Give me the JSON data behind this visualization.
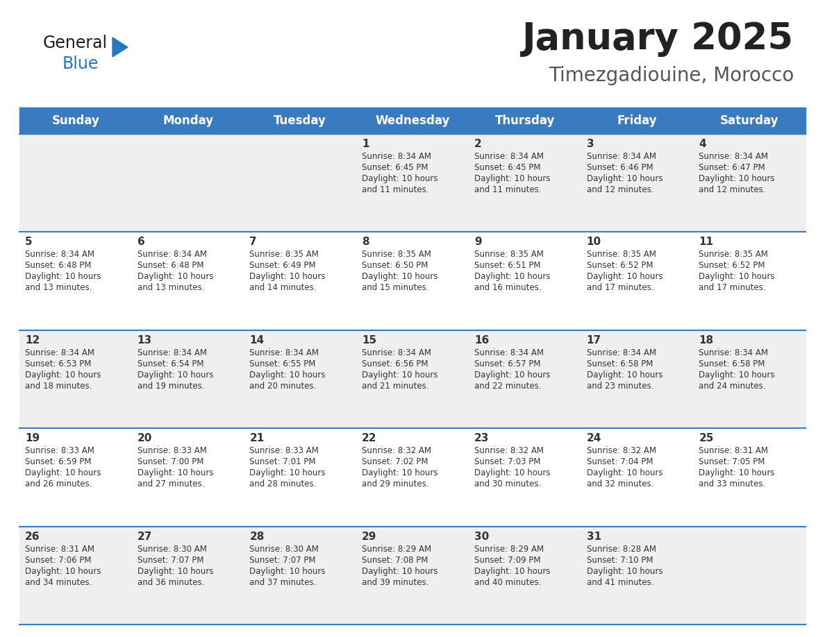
{
  "title": "January 2025",
  "subtitle": "Timezgadiouine, Morocco",
  "days_of_week": [
    "Sunday",
    "Monday",
    "Tuesday",
    "Wednesday",
    "Thursday",
    "Friday",
    "Saturday"
  ],
  "header_bg": "#3a7abf",
  "header_text_color": "#FFFFFF",
  "cell_bg_light": "#EFEFEF",
  "cell_bg_white": "#FFFFFF",
  "row_separator_color": "#3a7abf",
  "text_color": "#333333",
  "title_color": "#222222",
  "subtitle_color": "#555555",
  "logo_general_color": "#1a1a1a",
  "logo_blue_color": "#2278C2",
  "calendar_data": [
    [
      {
        "day": null,
        "sunrise": null,
        "sunset": null,
        "daylight": null
      },
      {
        "day": null,
        "sunrise": null,
        "sunset": null,
        "daylight": null
      },
      {
        "day": null,
        "sunrise": null,
        "sunset": null,
        "daylight": null
      },
      {
        "day": 1,
        "sunrise": "8:34 AM",
        "sunset": "6:45 PM",
        "daylight": "10 hours and 11 minutes."
      },
      {
        "day": 2,
        "sunrise": "8:34 AM",
        "sunset": "6:45 PM",
        "daylight": "10 hours and 11 minutes."
      },
      {
        "day": 3,
        "sunrise": "8:34 AM",
        "sunset": "6:46 PM",
        "daylight": "10 hours and 12 minutes."
      },
      {
        "day": 4,
        "sunrise": "8:34 AM",
        "sunset": "6:47 PM",
        "daylight": "10 hours and 12 minutes."
      }
    ],
    [
      {
        "day": 5,
        "sunrise": "8:34 AM",
        "sunset": "6:48 PM",
        "daylight": "10 hours and 13 minutes."
      },
      {
        "day": 6,
        "sunrise": "8:34 AM",
        "sunset": "6:48 PM",
        "daylight": "10 hours and 13 minutes."
      },
      {
        "day": 7,
        "sunrise": "8:35 AM",
        "sunset": "6:49 PM",
        "daylight": "10 hours and 14 minutes."
      },
      {
        "day": 8,
        "sunrise": "8:35 AM",
        "sunset": "6:50 PM",
        "daylight": "10 hours and 15 minutes."
      },
      {
        "day": 9,
        "sunrise": "8:35 AM",
        "sunset": "6:51 PM",
        "daylight": "10 hours and 16 minutes."
      },
      {
        "day": 10,
        "sunrise": "8:35 AM",
        "sunset": "6:52 PM",
        "daylight": "10 hours and 17 minutes."
      },
      {
        "day": 11,
        "sunrise": "8:35 AM",
        "sunset": "6:52 PM",
        "daylight": "10 hours and 17 minutes."
      }
    ],
    [
      {
        "day": 12,
        "sunrise": "8:34 AM",
        "sunset": "6:53 PM",
        "daylight": "10 hours and 18 minutes."
      },
      {
        "day": 13,
        "sunrise": "8:34 AM",
        "sunset": "6:54 PM",
        "daylight": "10 hours and 19 minutes."
      },
      {
        "day": 14,
        "sunrise": "8:34 AM",
        "sunset": "6:55 PM",
        "daylight": "10 hours and 20 minutes."
      },
      {
        "day": 15,
        "sunrise": "8:34 AM",
        "sunset": "6:56 PM",
        "daylight": "10 hours and 21 minutes."
      },
      {
        "day": 16,
        "sunrise": "8:34 AM",
        "sunset": "6:57 PM",
        "daylight": "10 hours and 22 minutes."
      },
      {
        "day": 17,
        "sunrise": "8:34 AM",
        "sunset": "6:58 PM",
        "daylight": "10 hours and 23 minutes."
      },
      {
        "day": 18,
        "sunrise": "8:34 AM",
        "sunset": "6:58 PM",
        "daylight": "10 hours and 24 minutes."
      }
    ],
    [
      {
        "day": 19,
        "sunrise": "8:33 AM",
        "sunset": "6:59 PM",
        "daylight": "10 hours and 26 minutes."
      },
      {
        "day": 20,
        "sunrise": "8:33 AM",
        "sunset": "7:00 PM",
        "daylight": "10 hours and 27 minutes."
      },
      {
        "day": 21,
        "sunrise": "8:33 AM",
        "sunset": "7:01 PM",
        "daylight": "10 hours and 28 minutes."
      },
      {
        "day": 22,
        "sunrise": "8:32 AM",
        "sunset": "7:02 PM",
        "daylight": "10 hours and 29 minutes."
      },
      {
        "day": 23,
        "sunrise": "8:32 AM",
        "sunset": "7:03 PM",
        "daylight": "10 hours and 30 minutes."
      },
      {
        "day": 24,
        "sunrise": "8:32 AM",
        "sunset": "7:04 PM",
        "daylight": "10 hours and 32 minutes."
      },
      {
        "day": 25,
        "sunrise": "8:31 AM",
        "sunset": "7:05 PM",
        "daylight": "10 hours and 33 minutes."
      }
    ],
    [
      {
        "day": 26,
        "sunrise": "8:31 AM",
        "sunset": "7:06 PM",
        "daylight": "10 hours and 34 minutes."
      },
      {
        "day": 27,
        "sunrise": "8:30 AM",
        "sunset": "7:07 PM",
        "daylight": "10 hours and 36 minutes."
      },
      {
        "day": 28,
        "sunrise": "8:30 AM",
        "sunset": "7:07 PM",
        "daylight": "10 hours and 37 minutes."
      },
      {
        "day": 29,
        "sunrise": "8:29 AM",
        "sunset": "7:08 PM",
        "daylight": "10 hours and 39 minutes."
      },
      {
        "day": 30,
        "sunrise": "8:29 AM",
        "sunset": "7:09 PM",
        "daylight": "10 hours and 40 minutes."
      },
      {
        "day": 31,
        "sunrise": "8:28 AM",
        "sunset": "7:10 PM",
        "daylight": "10 hours and 41 minutes."
      },
      {
        "day": null,
        "sunrise": null,
        "sunset": null,
        "daylight": null
      }
    ]
  ]
}
